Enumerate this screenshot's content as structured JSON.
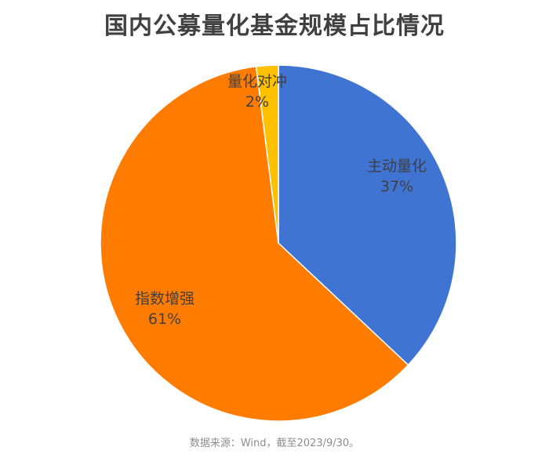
{
  "title": "国内公募量化基金规模占比情况",
  "source": "数据来源：Wind，截至2023/9/30。",
  "chart_data": {
    "type": "pie",
    "title": "国内公募量化基金规模占比情况",
    "slices": [
      {
        "name": "主动量化",
        "value": 37,
        "label": "37%",
        "color": "#3f74d3"
      },
      {
        "name": "指数增强",
        "value": 61,
        "label": "61%",
        "color": "#ff7c00"
      },
      {
        "name": "量化对冲",
        "value": 2,
        "label": "2%",
        "color": "#ffc000"
      }
    ],
    "start_angle": "12 o'clock",
    "direction": "clockwise",
    "legend": "none"
  }
}
